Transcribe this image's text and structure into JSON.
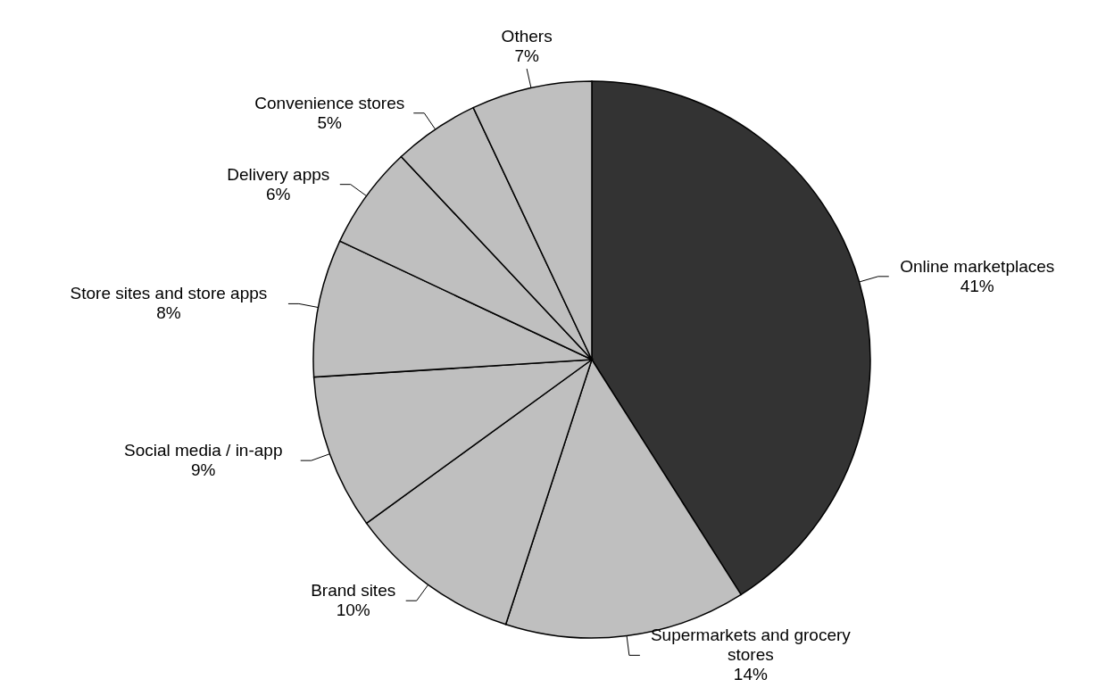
{
  "chart_data": {
    "type": "pie",
    "categories": [
      "Online marketplaces",
      "Supermarkets and grocery stores",
      "Brand sites",
      "Social media / in-app",
      "Store sites and store apps",
      "Delivery apps",
      "Convenience stores",
      "Others"
    ],
    "values": [
      41,
      14,
      10,
      9,
      8,
      6,
      5,
      7
    ],
    "value_labels": [
      "41%",
      "14%",
      "10%",
      "9%",
      "8%",
      "6%",
      "5%",
      "7%"
    ],
    "colors": [
      "#333333",
      "#bfbfbf",
      "#bfbfbf",
      "#bfbfbf",
      "#bfbfbf",
      "#bfbfbf",
      "#bfbfbf",
      "#bfbfbf"
    ],
    "legend": false
  }
}
